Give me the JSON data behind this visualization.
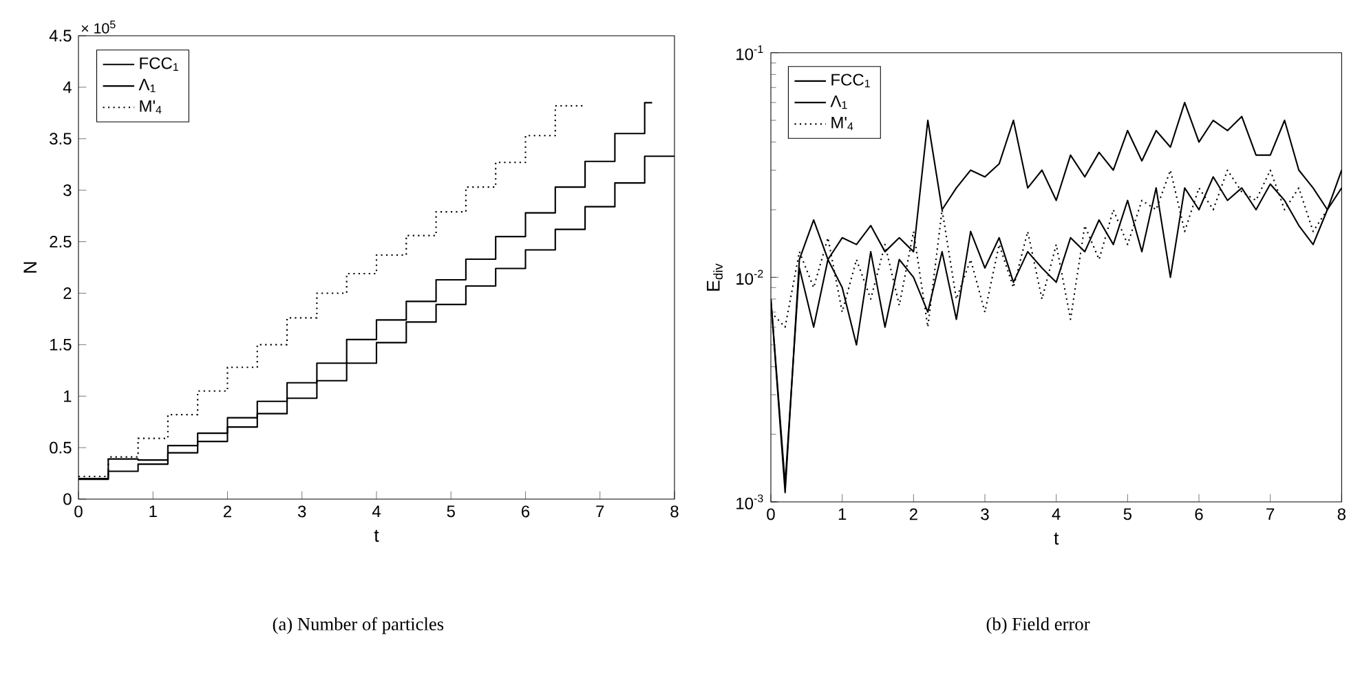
{
  "chart_data": [
    {
      "type": "step",
      "title": "(a) Number of particles",
      "xlabel": "t",
      "ylabel": "N",
      "annotations": [
        "× 10$^{5}$"
      ],
      "xlim": [
        0,
        8
      ],
      "ylim": [
        0,
        4.5
      ],
      "xticks": [
        0,
        1,
        2,
        3,
        4,
        5,
        6,
        7,
        8
      ],
      "yticks": [
        0,
        0.5,
        1,
        1.5,
        2,
        2.5,
        3,
        3.5,
        4,
        4.5
      ],
      "legend": "top left",
      "series": [
        {
          "name": "FCC$_{1}$",
          "color": "#000000",
          "line_style": "solid",
          "x": [
            0,
            0.4,
            0.8,
            1.2,
            1.6,
            2.0,
            2.4,
            2.8,
            3.2,
            3.6,
            4.0,
            4.4,
            4.8,
            5.2,
            5.6,
            6.0,
            6.4,
            6.8,
            7.2,
            7.6,
            8.0
          ],
          "values": [
            0.19,
            0.27,
            0.34,
            0.45,
            0.56,
            0.7,
            0.83,
            0.98,
            1.15,
            1.32,
            1.52,
            1.72,
            1.89,
            2.07,
            2.24,
            2.42,
            2.62,
            2.84,
            3.07,
            3.33,
            3.33
          ]
        },
        {
          "name": "Λ$_{1}$",
          "color": "#000000",
          "line_style": "solid",
          "x": [
            0,
            0.4,
            0.8,
            1.2,
            1.6,
            2.0,
            2.4,
            2.8,
            3.2,
            3.6,
            4.0,
            4.4,
            4.8,
            5.2,
            5.6,
            6.0,
            6.4,
            6.8,
            7.2,
            7.6,
            7.7
          ],
          "values": [
            0.2,
            0.39,
            0.38,
            0.52,
            0.64,
            0.79,
            0.95,
            1.13,
            1.32,
            1.55,
            1.74,
            1.92,
            2.13,
            2.33,
            2.55,
            2.78,
            3.03,
            3.28,
            3.55,
            3.85,
            3.85
          ]
        },
        {
          "name": "M'$_{4}$",
          "color": "#000000",
          "line_style": "dotted",
          "x": [
            0,
            0.4,
            0.8,
            1.2,
            1.6,
            2.0,
            2.4,
            2.8,
            3.2,
            3.6,
            4.0,
            4.4,
            4.8,
            5.2,
            5.6,
            6.0,
            6.4,
            6.8
          ],
          "values": [
            0.22,
            0.41,
            0.59,
            0.82,
            1.05,
            1.28,
            1.5,
            1.76,
            2.0,
            2.19,
            2.37,
            2.56,
            2.79,
            3.03,
            3.27,
            3.53,
            3.82,
            3.82
          ]
        }
      ]
    },
    {
      "type": "line",
      "title": "(b) Field error",
      "xlabel": "t",
      "ylabel": "E$_{div}$",
      "log": "y",
      "xlim": [
        0,
        8
      ],
      "ylim": [
        0.001,
        0.1
      ],
      "xticks": [
        0,
        1,
        2,
        3,
        4,
        5,
        6,
        7,
        8
      ],
      "yticks": [
        {
          "value": 0.001,
          "label": "10$^{-3}$"
        },
        {
          "value": 0.01,
          "label": "10$^{-2}$"
        },
        {
          "value": 0.1,
          "label": "10$^{-1}$"
        }
      ],
      "legend": "top left",
      "x": [
        0,
        0.2,
        0.4,
        0.6,
        0.8,
        1.0,
        1.2,
        1.4,
        1.6,
        1.8,
        2.0,
        2.2,
        2.4,
        2.6,
        2.8,
        3.0,
        3.2,
        3.4,
        3.6,
        3.8,
        4.0,
        4.2,
        4.4,
        4.6,
        4.8,
        5.0,
        5.2,
        5.4,
        5.6,
        5.8,
        6.0,
        6.2,
        6.4,
        6.6,
        6.8,
        7.0,
        7.2,
        7.4,
        7.6,
        7.8,
        8.0
      ],
      "series": [
        {
          "name": "FCC$_{1}$",
          "color": "#000000",
          "line_style": "solid",
          "values": [
            0.008,
            0.0012,
            0.011,
            0.006,
            0.012,
            0.009,
            0.005,
            0.013,
            0.006,
            0.012,
            0.01,
            0.007,
            0.013,
            0.0065,
            0.016,
            0.011,
            0.015,
            0.0095,
            0.013,
            0.011,
            0.0095,
            0.015,
            0.013,
            0.018,
            0.014,
            0.022,
            0.013,
            0.025,
            0.01,
            0.025,
            0.02,
            0.028,
            0.022,
            0.025,
            0.02,
            0.026,
            0.022,
            0.017,
            0.014,
            0.02,
            0.025
          ]
        },
        {
          "name": "Λ$_{1}$",
          "color": "#000000",
          "line_style": "solid",
          "values": [
            0.008,
            0.0011,
            0.012,
            0.018,
            0.012,
            0.015,
            0.014,
            0.017,
            0.013,
            0.015,
            0.013,
            0.05,
            0.02,
            0.025,
            0.03,
            0.028,
            0.032,
            0.05,
            0.025,
            0.03,
            0.022,
            0.035,
            0.028,
            0.036,
            0.03,
            0.045,
            0.033,
            0.045,
            0.038,
            0.06,
            0.04,
            0.05,
            0.045,
            0.052,
            0.035,
            0.035,
            0.05,
            0.03,
            0.025,
            0.02,
            0.03
          ]
        },
        {
          "name": "M'$_{4}$",
          "color": "#000000",
          "line_style": "dotted",
          "values": [
            0.007,
            0.006,
            0.013,
            0.009,
            0.015,
            0.007,
            0.012,
            0.008,
            0.014,
            0.0075,
            0.016,
            0.006,
            0.02,
            0.008,
            0.012,
            0.007,
            0.014,
            0.009,
            0.016,
            0.008,
            0.014,
            0.0065,
            0.017,
            0.012,
            0.02,
            0.014,
            0.022,
            0.02,
            0.03,
            0.016,
            0.025,
            0.02,
            0.03,
            0.024,
            0.022,
            0.03,
            0.02,
            0.025,
            0.016,
            0.02,
            null
          ]
        }
      ]
    }
  ]
}
